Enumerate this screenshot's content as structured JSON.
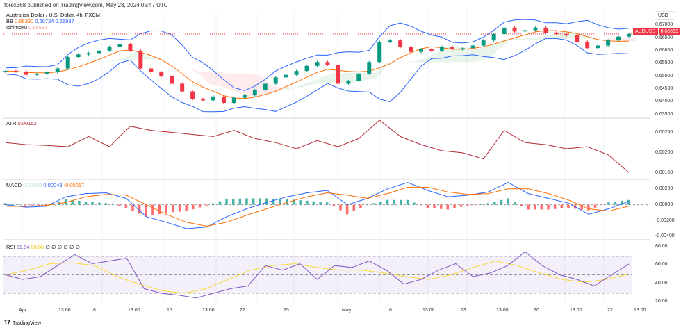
{
  "header": {
    "published": "forex368 published on TradingView.com, May 28, 2024 05:47 UTC"
  },
  "main": {
    "symbol_title": "Australian Dollar / U.S. Dollar, 4h, FXCM",
    "bb_label": "BB",
    "bb_values": [
      "0.66330",
      "0.66724",
      "0.65937"
    ],
    "ichimoku_label": "Ichimoku",
    "ichimoku_value": "0.66531",
    "currency": "USD",
    "current_symbol": "AUDUSD",
    "current_price": "0.66653",
    "price_ticks": [
      "0.67000",
      "0.66500",
      "0.66000",
      "0.65500",
      "0.65000",
      "0.64500",
      "0.64000",
      "0.63500"
    ]
  },
  "atr": {
    "label": "ATR",
    "value": "0.00152",
    "ticks": [
      "0.00250",
      "0.00200",
      "0.00150"
    ]
  },
  "macd": {
    "label": "MACD",
    "hist": "0.00060",
    "macd": "0.00043",
    "signal": "-0.00017",
    "ticks": [
      "0.00200",
      "0.00000",
      "-0.00200",
      "-0.00400"
    ]
  },
  "rsi": {
    "label": "RSI",
    "value": "61.64",
    "ma": "50.86",
    "extra": "∅ ∅ ∅ ∅ ∅ ∅",
    "ticks": [
      "80.00",
      "60.00",
      "40.00",
      "20.00"
    ]
  },
  "time_axis": [
    "Apr",
    "13:00",
    "8",
    "13:00",
    "15",
    "13:00",
    "22",
    "25",
    "May",
    "6",
    "13:00",
    "13",
    "13:00",
    "20",
    "13:00",
    "27",
    "13:00"
  ],
  "footer": {
    "brand": "TradingView"
  },
  "colors": {
    "up": "#089981",
    "down": "#f23645",
    "bb": "#2962ff",
    "basis": "#ff6d00",
    "atr": "#b22833",
    "macd": "#2962ff",
    "signal": "#ff6d00",
    "rsi": "#7e57c2",
    "rsi_ma": "#fdd835"
  },
  "chart_data": {
    "type": "line",
    "price_close": [
      0.652,
      0.6518,
      0.6505,
      0.6508,
      0.6515,
      0.653,
      0.6575,
      0.6585,
      0.659,
      0.66,
      0.6615,
      0.6625,
      0.66,
      0.653,
      0.6515,
      0.65,
      0.647,
      0.644,
      0.641,
      0.6405,
      0.642,
      0.6395,
      0.6415,
      0.6425,
      0.6445,
      0.647,
      0.6495,
      0.6505,
      0.652,
      0.654,
      0.6555,
      0.6545,
      0.647,
      0.648,
      0.651,
      0.6555,
      0.6635,
      0.664,
      0.6615,
      0.6595,
      0.6605,
      0.66,
      0.6615,
      0.6605,
      0.661,
      0.662,
      0.664,
      0.6665,
      0.669,
      0.6675,
      0.668,
      0.669,
      0.667,
      0.6665,
      0.666,
      0.6635,
      0.661,
      0.662,
      0.664,
      0.6655,
      0.66653
    ],
    "price_ylim": [
      0.6335,
      0.6725
    ],
    "atr": [
      0.00225,
      0.0022,
      0.00218,
      0.00215,
      0.0024,
      0.00215,
      0.00265,
      0.00255,
      0.0025,
      0.00245,
      0.0024,
      0.00255,
      0.00235,
      0.00225,
      0.0021,
      0.0023,
      0.00215,
      0.00235,
      0.0028,
      0.0024,
      0.0022,
      0.00205,
      0.002,
      0.00185,
      0.00255,
      0.00225,
      0.0022,
      0.0021,
      0.00215,
      0.00195,
      0.00152
    ],
    "atr_ylim": [
      0.00135,
      0.00285
    ],
    "macd_line": [
      0,
      -0.0003,
      -0.0002,
      0.001,
      0.0014,
      0.0015,
      0.0008,
      -0.0015,
      -0.0022,
      -0.003,
      -0.0028,
      -0.0015,
      -0.0005,
      0.0003,
      0.001,
      0.0015,
      0.0018,
      0.0,
      0.0008,
      0.002,
      0.0028,
      0.0018,
      0.001,
      0.0012,
      0.0016,
      0.0028,
      0.0014,
      0.0008,
      0.0002,
      -0.0012,
      -0.0005,
      0.00043
    ],
    "signal_line": [
      -0.0002,
      -0.0002,
      -0.0001,
      0.0003,
      0.001,
      0.0013,
      0.0012,
      0.0,
      -0.0012,
      -0.0022,
      -0.0027,
      -0.0022,
      -0.0013,
      -0.0005,
      0.0003,
      0.001,
      0.0015,
      0.0012,
      0.0008,
      0.0014,
      0.0022,
      0.0022,
      0.0016,
      0.0013,
      0.0014,
      0.002,
      0.002,
      0.0014,
      0.0006,
      -0.0005,
      -0.0008,
      -0.00017
    ],
    "macd_ylim": [
      -0.0044,
      0.0032
    ],
    "rsi": [
      50,
      45,
      48,
      60,
      72,
      62,
      65,
      68,
      35,
      30,
      28,
      25,
      30,
      35,
      38,
      60,
      55,
      62,
      45,
      60,
      58,
      65,
      55,
      40,
      45,
      55,
      62,
      48,
      52,
      60,
      75,
      60,
      50,
      45,
      38,
      50,
      61.64
    ],
    "rsi_ma": [
      50,
      55,
      62,
      63,
      60,
      48,
      40,
      33,
      30,
      35,
      45,
      55,
      60,
      62,
      58,
      55,
      55,
      52,
      48,
      45,
      50,
      58,
      65,
      60,
      52,
      45,
      42,
      45,
      50.86
    ],
    "rsi_ylim": [
      18,
      88
    ],
    "rsi_bands": [
      70,
      50,
      30
    ]
  }
}
